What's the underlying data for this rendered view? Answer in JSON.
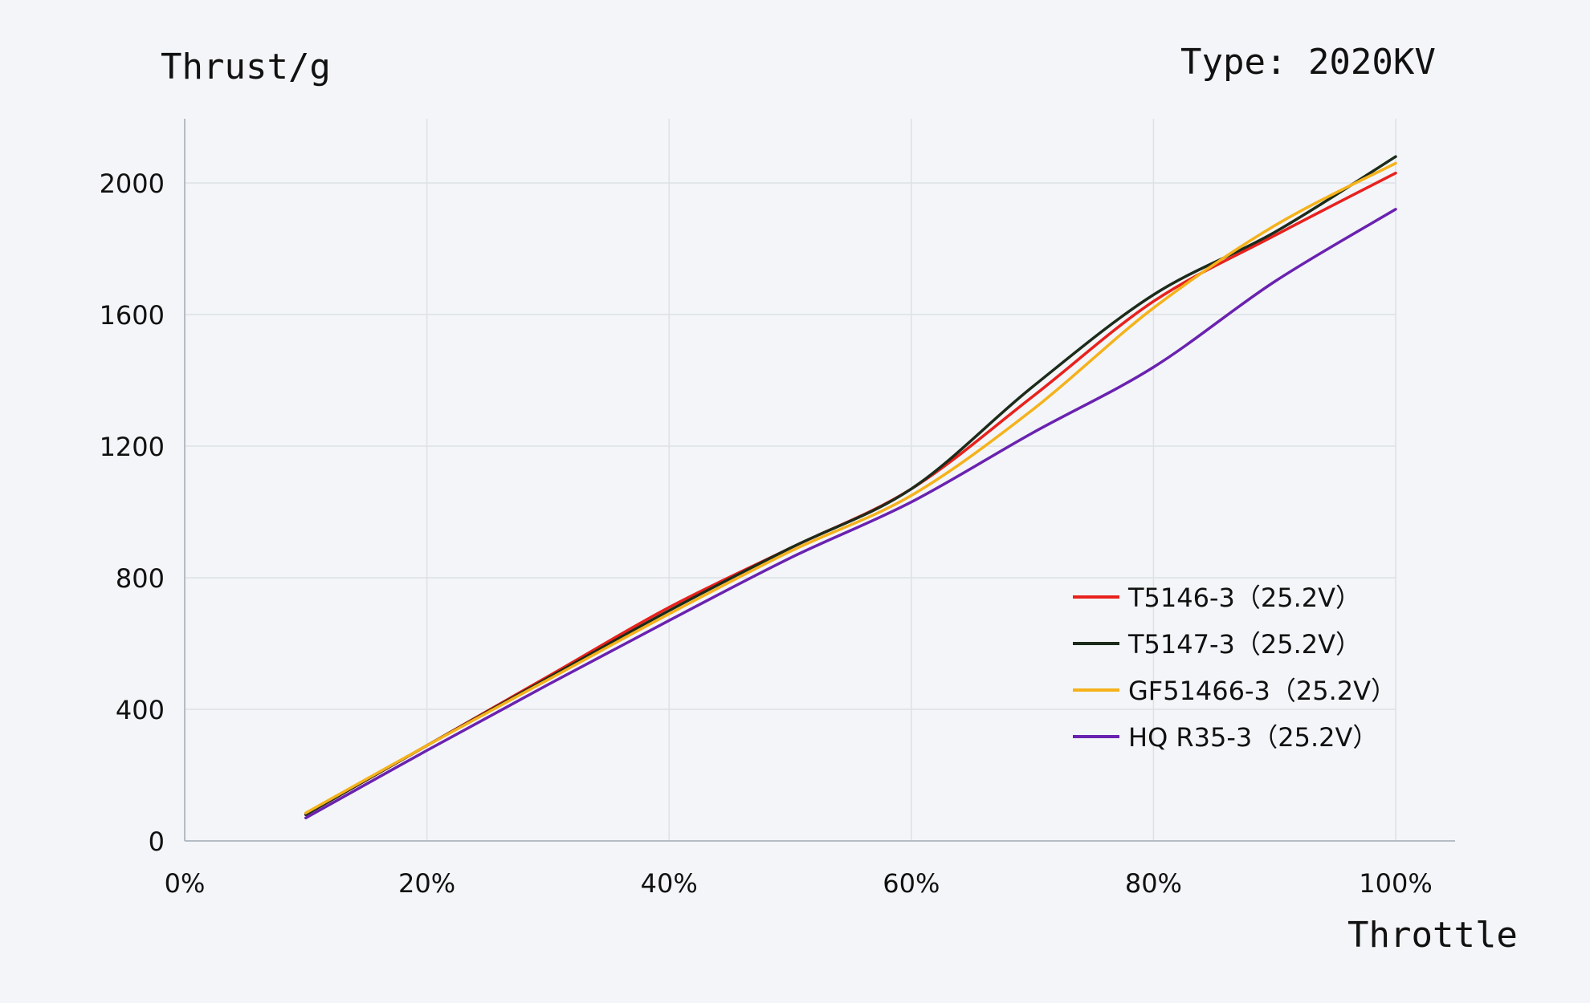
{
  "chart_data": {
    "type": "line",
    "title": "Type: 2020KV",
    "ylabel": "Thrust/g",
    "xlabel": "Throttle",
    "xlim": [
      0,
      100
    ],
    "ylim": [
      0,
      2200
    ],
    "x_ticks": [
      0,
      20,
      40,
      60,
      80,
      100
    ],
    "x_tick_labels": [
      "0%",
      "20%",
      "40%",
      "60%",
      "80%",
      "100%"
    ],
    "y_ticks": [
      0,
      400,
      800,
      1200,
      1600,
      2000
    ],
    "y_tick_labels": [
      "0",
      "400",
      "800",
      "1200",
      "1600",
      "2000"
    ],
    "grid": true,
    "legend_position": "right",
    "series": [
      {
        "name": "T5146-3（25.2V）",
        "color": "#e8211d",
        "x": [
          10,
          20,
          30,
          40,
          50,
          60,
          70,
          80,
          90,
          100
        ],
        "y": [
          80,
          290,
          500,
          710,
          890,
          1070,
          1350,
          1640,
          1840,
          2030
        ]
      },
      {
        "name": "T5147-3（25.2V）",
        "color": "#1c2b1a",
        "x": [
          10,
          20,
          30,
          40,
          50,
          60,
          70,
          80,
          90,
          100
        ],
        "y": [
          80,
          290,
          495,
          700,
          890,
          1070,
          1380,
          1660,
          1850,
          2080
        ]
      },
      {
        "name": "GF51466-3（25.2V）",
        "color": "#f5b21b",
        "x": [
          10,
          20,
          30,
          40,
          50,
          60,
          70,
          80,
          90,
          100
        ],
        "y": [
          85,
          290,
          490,
          690,
          880,
          1050,
          1310,
          1620,
          1870,
          2060
        ]
      },
      {
        "name": "HQ R35-3（25.2V）",
        "color": "#6a22b0",
        "x": [
          10,
          20,
          30,
          40,
          50,
          60,
          70,
          80,
          90,
          100
        ],
        "y": [
          70,
          275,
          475,
          670,
          860,
          1030,
          1240,
          1440,
          1700,
          1920
        ]
      }
    ]
  }
}
